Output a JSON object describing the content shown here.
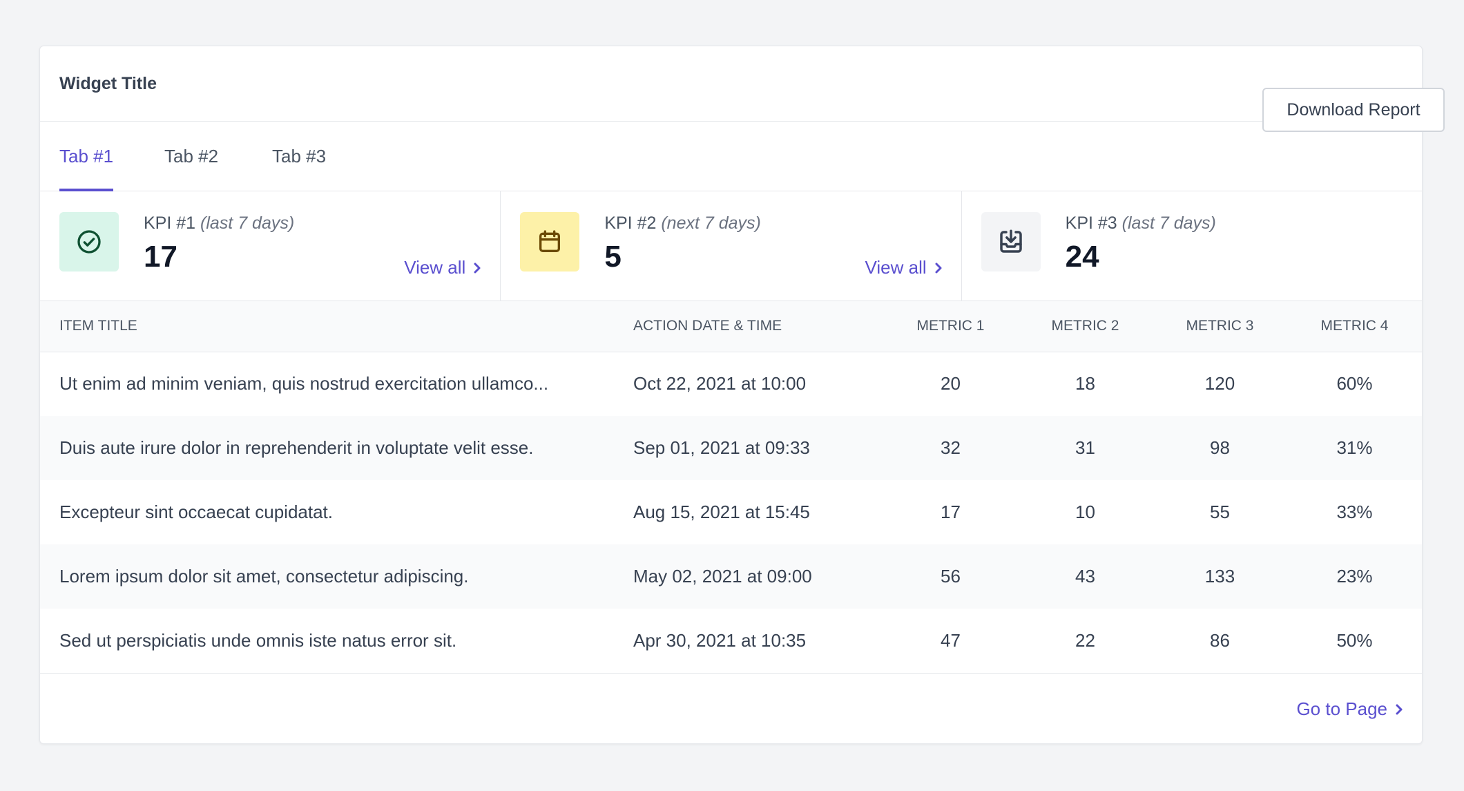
{
  "widget": {
    "title": "Widget Title"
  },
  "tabs": [
    {
      "label": "Tab #1",
      "active": true
    },
    {
      "label": "Tab #2",
      "active": false
    },
    {
      "label": "Tab #3",
      "active": false
    }
  ],
  "toolbar": {
    "download_label": "Download Report"
  },
  "kpis": [
    {
      "label": "KPI #1",
      "period": "(last 7 days)",
      "value": "17",
      "link": "View all",
      "icon": "check-circle-icon",
      "icon_bg": "#d9f5ea",
      "icon_color": "#0f5132"
    },
    {
      "label": "KPI #2",
      "period": "(next 7 days)",
      "value": "5",
      "link": "View all",
      "icon": "calendar-icon",
      "icon_bg": "#fdf1a8",
      "icon_color": "#6b4a05"
    },
    {
      "label": "KPI #3",
      "period": "(last 7 days)",
      "value": "24",
      "icon": "download-tray-icon",
      "icon_bg": "#f3f4f6",
      "icon_color": "#374151"
    }
  ],
  "table": {
    "headers": [
      "Item Title",
      "Action Date & Time",
      "Metric 1",
      "Metric 2",
      "Metric 3",
      "Metric 4"
    ],
    "rows": [
      [
        "Ut enim ad minim veniam, quis nostrud exercitation ullamco...",
        "Oct 22, 2021 at 10:00",
        "20",
        "18",
        "120",
        "60%"
      ],
      [
        "Duis aute irure dolor in reprehenderit in voluptate velit esse.",
        "Sep 01, 2021 at 09:33",
        "32",
        "31",
        "98",
        "31%"
      ],
      [
        "Excepteur sint occaecat cupidatat.",
        "Aug 15, 2021 at 15:45",
        "17",
        "10",
        "55",
        "33%"
      ],
      [
        "Lorem ipsum dolor sit amet, consectetur adipiscing.",
        "May 02, 2021 at 09:00",
        "56",
        "43",
        "133",
        "23%"
      ],
      [
        "Sed ut perspiciatis unde omnis iste natus error sit.",
        "Apr 30, 2021 at 10:35",
        "47",
        "22",
        "86",
        "50%"
      ]
    ]
  },
  "footer": {
    "link": "Go to Page"
  },
  "colors": {
    "accent": "#5a4fcf"
  }
}
